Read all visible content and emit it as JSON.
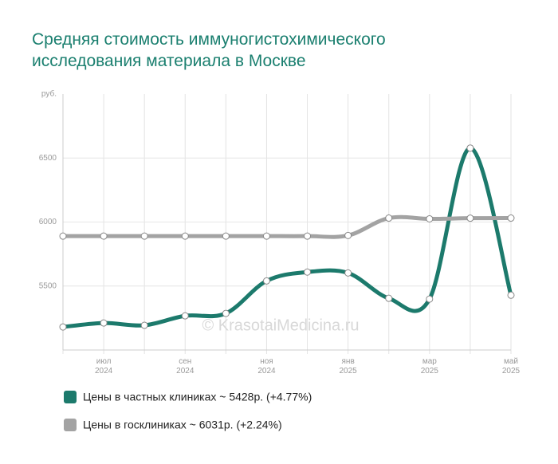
{
  "chart_data": {
    "type": "line",
    "title": "Средняя стоимость иммуногистохимического исследования материала в Москве",
    "watermark": "© KrasotaiMedicina.ru",
    "categories": [
      null,
      "июл 2024",
      null,
      "сен 2024",
      null,
      "ноя 2024",
      null,
      "янв 2025",
      null,
      "мар 2025",
      null,
      "май 2025"
    ],
    "series": [
      {
        "name": "Цены в частных клиниках ~ 5428р. (+4.77%)",
        "color": "#1c7a6c",
        "values": [
          5180,
          5211,
          5193,
          5267,
          5286,
          5540,
          5609,
          5602,
          5404,
          5398,
          6578,
          5428
        ]
      },
      {
        "name": "Цены в госклиниках ~ 6031р. (+2.24%)",
        "color": "#a3a3a3",
        "values": [
          5890,
          5890,
          5890,
          5890,
          5890,
          5890,
          5890,
          5895,
          6031,
          6025,
          6030,
          6031
        ]
      }
    ],
    "ylim": [
      5000,
      7000
    ],
    "yticks": [
      5500,
      6000,
      6500,
      {
        "value": 7000,
        "label": "руб."
      }
    ],
    "grid": true
  }
}
